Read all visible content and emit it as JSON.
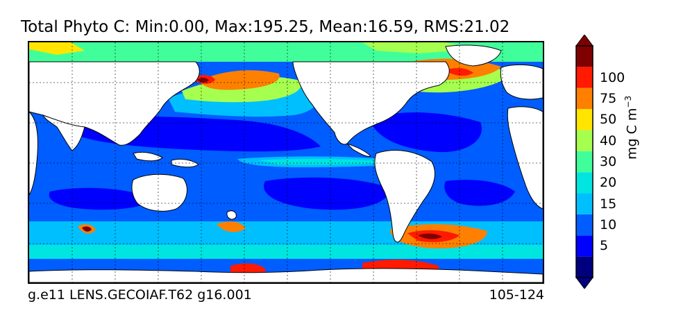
{
  "title": "Total Phyto C: Min:0.00, Max:195.25, Mean:16.59, RMS:21.02",
  "footer": {
    "left": "g.e11 LENS.GECOIAF.T62 g16.001",
    "right": "105-124"
  },
  "colorbar": {
    "units_main": "mg C m",
    "units_exp": "−3",
    "levels": [
      {
        "label": "",
        "color": "#00007f"
      },
      {
        "label": "5",
        "color": "#0000ff"
      },
      {
        "label": "10",
        "color": "#005dff"
      },
      {
        "label": "15",
        "color": "#00bfff"
      },
      {
        "label": "20",
        "color": "#00e5e0"
      },
      {
        "label": "30",
        "color": "#40ff9a"
      },
      {
        "label": "40",
        "color": "#a6ff4f"
      },
      {
        "label": "50",
        "color": "#ffe500"
      },
      {
        "label": "75",
        "color": "#ff8000"
      },
      {
        "label": "100",
        "color": "#ff1a00"
      },
      {
        "label": "",
        "color": "#7f0000"
      }
    ],
    "extend_low_color": "#00007f",
    "extend_high_color": "#7f0000"
  },
  "map": {
    "projection": "cylindrical, centered on Pacific",
    "land_color": "#ffffff",
    "grid": "dashed, 30 degree spacing"
  }
}
